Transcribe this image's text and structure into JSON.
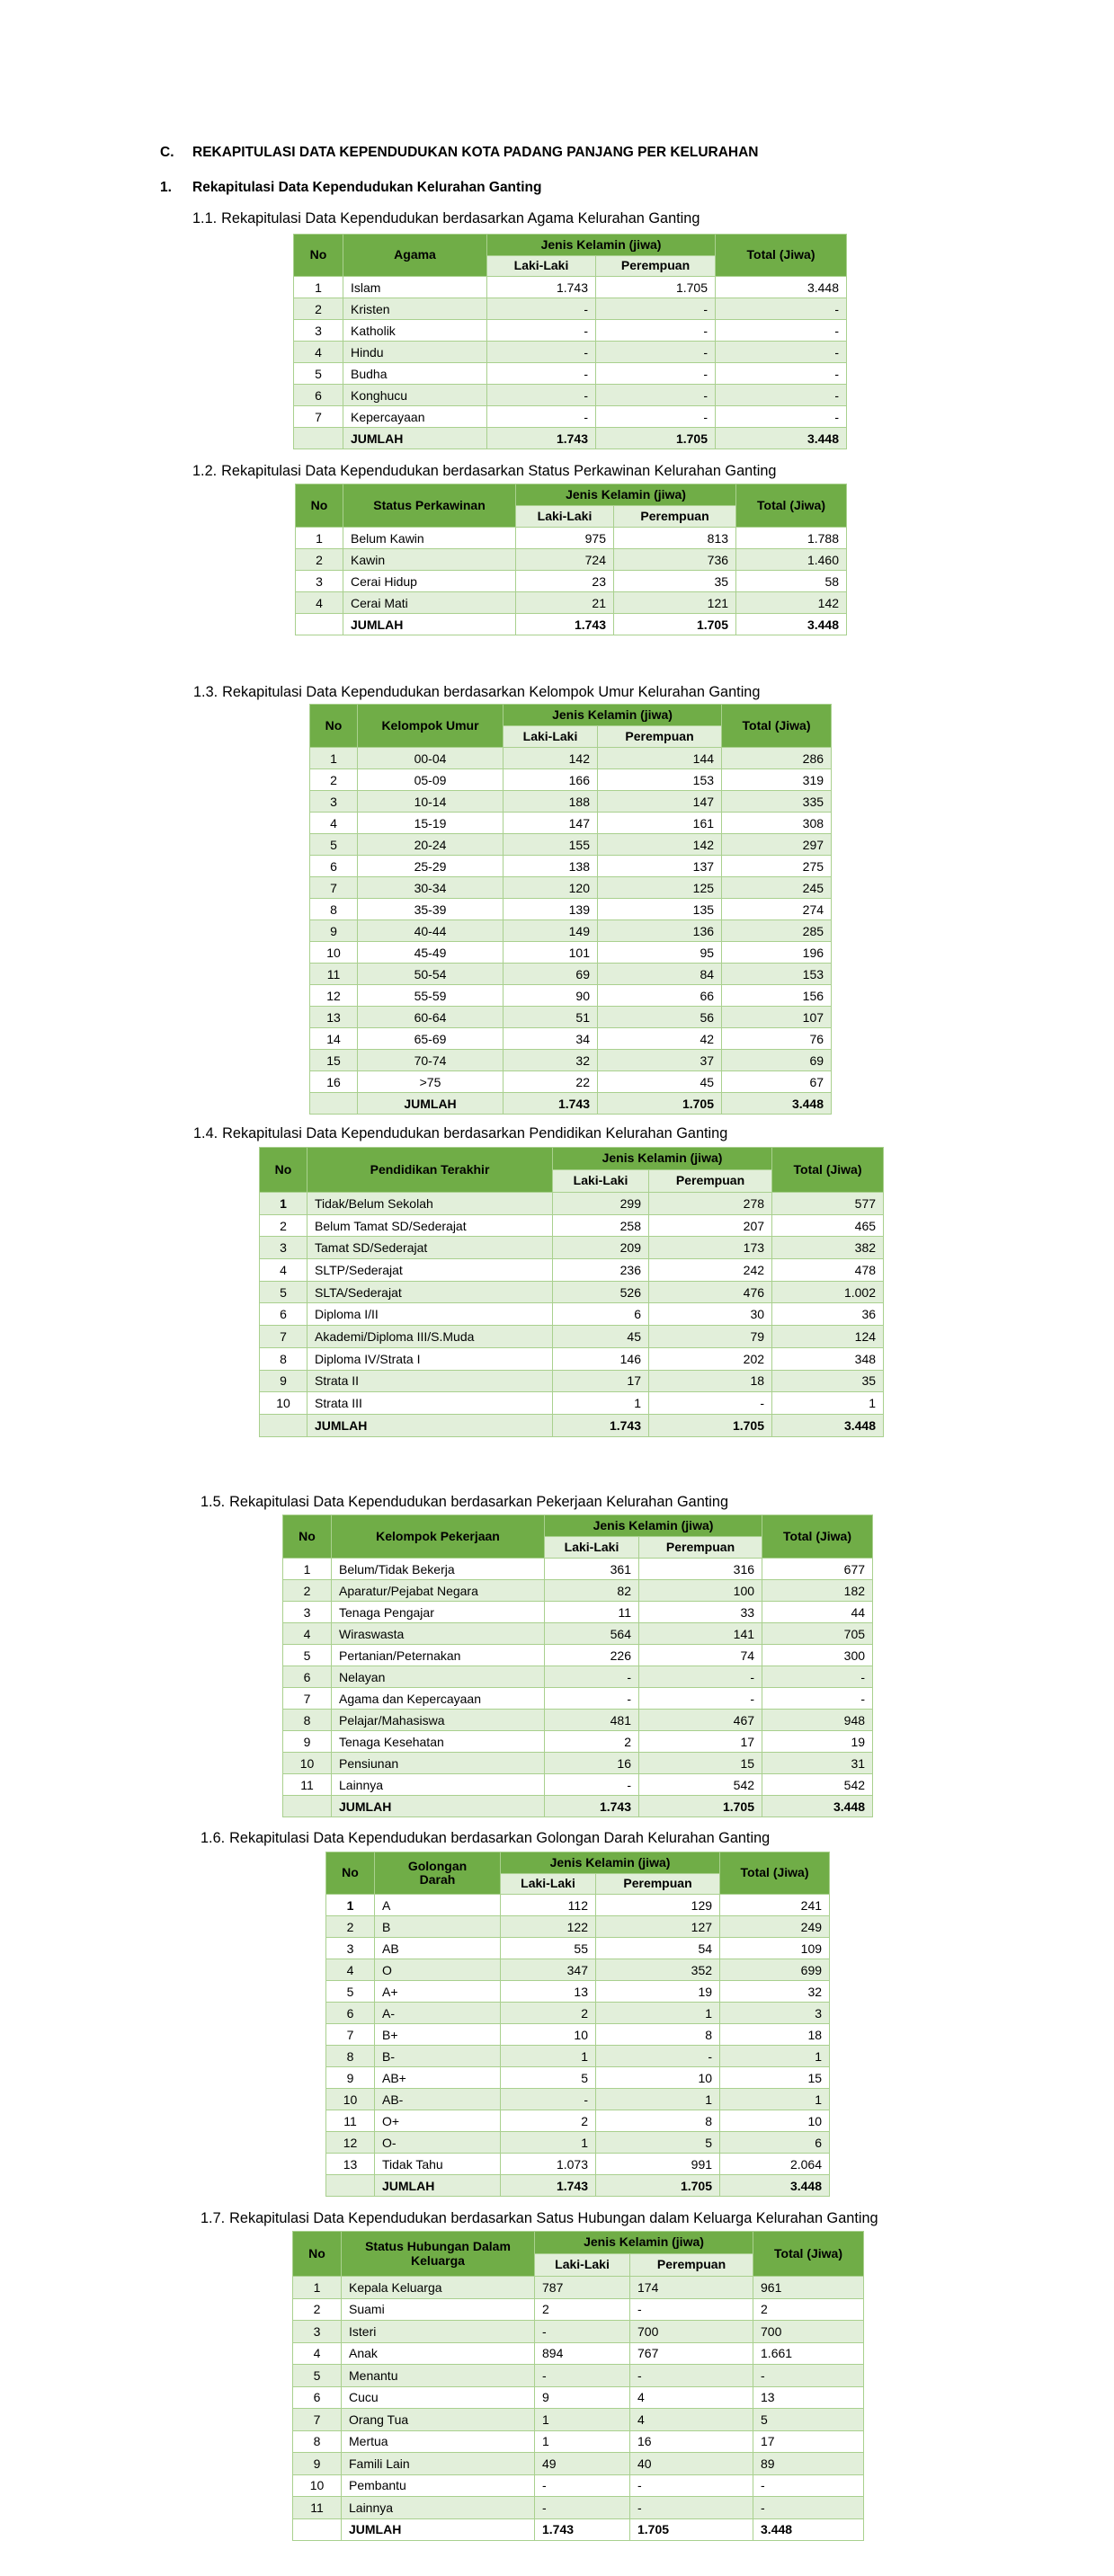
{
  "heading_c": {
    "label": "C.",
    "text": "REKAPITULASI DATA KEPENDUDUKAN KOTA PADANG PANJANG PER KELURAHAN"
  },
  "heading_1": {
    "label": "1.",
    "text": "Rekapitulasi Data Kependudukan Kelurahan Ganting"
  },
  "colors": {
    "header_dark": "#70AD47",
    "header_light": "#E2EFDA",
    "border": "#A9D08E"
  },
  "tables": [
    {
      "number": "1.1.",
      "caption": "Rekapitulasi Data Kependudukan berdasarkan Agama Kelurahan Ganting",
      "headers": {
        "no": "No",
        "category": "Agama",
        "gender_group": "Jenis Kelamin (jiwa)",
        "male": "Laki-Laki",
        "female": "Perempuan",
        "total": "Total (Jiwa)"
      },
      "rows": [
        [
          "1",
          "Islam",
          "1.743",
          "1.705",
          "3.448"
        ],
        [
          "2",
          "Kristen",
          "-",
          "-",
          "-"
        ],
        [
          "3",
          "Katholik",
          "-",
          "-",
          "-"
        ],
        [
          "4",
          "Hindu",
          "-",
          "-",
          "-"
        ],
        [
          "5",
          "Budha",
          "-",
          "-",
          "-"
        ],
        [
          "6",
          "Konghucu",
          "-",
          "-",
          "-"
        ],
        [
          "7",
          "Kepercayaan",
          "-",
          "-",
          "-"
        ]
      ],
      "total_row": [
        "",
        "JUMLAH",
        "1.743",
        "1.705",
        "3.448"
      ]
    },
    {
      "number": "1.2.",
      "caption": "Rekapitulasi Data Kependudukan berdasarkan Status Perkawinan Kelurahan Ganting",
      "headers": {
        "no": "No",
        "category": "Status Perkawinan",
        "gender_group": "Jenis Kelamin (jiwa)",
        "male": "Laki-Laki",
        "female": "Perempuan",
        "total": "Total (Jiwa)"
      },
      "rows": [
        [
          "1",
          "Belum Kawin",
          "975",
          "813",
          "1.788"
        ],
        [
          "2",
          "Kawin",
          "724",
          "736",
          "1.460"
        ],
        [
          "3",
          "Cerai Hidup",
          "23",
          "35",
          "58"
        ],
        [
          "4",
          "Cerai Mati",
          "21",
          "121",
          "142"
        ]
      ],
      "total_row": [
        "",
        "JUMLAH",
        "1.743",
        "1.705",
        "3.448"
      ]
    },
    {
      "number": "1.3.",
      "caption": "Rekapitulasi Data Kependudukan berdasarkan Kelompok Umur Kelurahan Ganting",
      "headers": {
        "no": "No",
        "category": "Kelompok Umur",
        "gender_group": "Jenis Kelamin (jiwa)",
        "male": "Laki-Laki",
        "female": "Perempuan",
        "total": "Total (Jiwa)"
      },
      "rows": [
        [
          "1",
          "00-04",
          "142",
          "144",
          "286"
        ],
        [
          "2",
          "05-09",
          "166",
          "153",
          "319"
        ],
        [
          "3",
          "10-14",
          "188",
          "147",
          "335"
        ],
        [
          "4",
          "15-19",
          "147",
          "161",
          "308"
        ],
        [
          "5",
          "20-24",
          "155",
          "142",
          "297"
        ],
        [
          "6",
          "25-29",
          "138",
          "137",
          "275"
        ],
        [
          "7",
          "30-34",
          "120",
          "125",
          "245"
        ],
        [
          "8",
          "35-39",
          "139",
          "135",
          "274"
        ],
        [
          "9",
          "40-44",
          "149",
          "136",
          "285"
        ],
        [
          "10",
          "45-49",
          "101",
          "95",
          "196"
        ],
        [
          "11",
          "50-54",
          "69",
          "84",
          "153"
        ],
        [
          "12",
          "55-59",
          "90",
          "66",
          "156"
        ],
        [
          "13",
          "60-64",
          "51",
          "56",
          "107"
        ],
        [
          "14",
          "65-69",
          "34",
          "42",
          "76"
        ],
        [
          "15",
          "70-74",
          "32",
          "37",
          "69"
        ],
        [
          "16",
          ">75",
          "22",
          "45",
          "67"
        ]
      ],
      "total_row": [
        "",
        "JUMLAH",
        "1.743",
        "1.705",
        "3.448"
      ]
    },
    {
      "number": "1.4.",
      "caption": "Rekapitulasi Data Kependudukan berdasarkan Pendidikan Kelurahan Ganting",
      "headers": {
        "no": "No",
        "category": "Pendidikan Terakhir",
        "gender_group": "Jenis Kelamin (jiwa)",
        "male": "Laki-Laki",
        "female": "Perempuan",
        "total": "Total (Jiwa)"
      },
      "rows": [
        [
          "1",
          "Tidak/Belum Sekolah",
          "299",
          "278",
          "577"
        ],
        [
          "2",
          "Belum Tamat SD/Sederajat",
          "258",
          "207",
          "465"
        ],
        [
          "3",
          "Tamat SD/Sederajat",
          "209",
          "173",
          "382"
        ],
        [
          "4",
          "SLTP/Sederajat",
          "236",
          "242",
          "478"
        ],
        [
          "5",
          "SLTA/Sederajat",
          "526",
          "476",
          "1.002"
        ],
        [
          "6",
          "Diploma I/II",
          "6",
          "30",
          "36"
        ],
        [
          "7",
          "Akademi/Diploma III/S.Muda",
          "45",
          "79",
          "124"
        ],
        [
          "8",
          "Diploma IV/Strata I",
          "146",
          "202",
          "348"
        ],
        [
          "9",
          "Strata II",
          "17",
          "18",
          "35"
        ],
        [
          "10",
          "Strata III",
          "1",
          "-",
          "1"
        ]
      ],
      "total_row": [
        "",
        "JUMLAH",
        "1.743",
        "1.705",
        "3.448"
      ]
    },
    {
      "number": "1.5.",
      "caption": "Rekapitulasi Data Kependudukan berdasarkan Pekerjaan Kelurahan Ganting",
      "headers": {
        "no": "No",
        "category": "Kelompok Pekerjaan",
        "gender_group": "Jenis Kelamin (jiwa)",
        "male": "Laki-Laki",
        "female": "Perempuan",
        "total": "Total (Jiwa)"
      },
      "rows": [
        [
          "1",
          "Belum/Tidak Bekerja",
          "361",
          "316",
          "677"
        ],
        [
          "2",
          "Aparatur/Pejabat Negara",
          "82",
          "100",
          "182"
        ],
        [
          "3",
          "Tenaga Pengajar",
          "11",
          "33",
          "44"
        ],
        [
          "4",
          "Wiraswasta",
          "564",
          "141",
          "705"
        ],
        [
          "5",
          "Pertanian/Peternakan",
          "226",
          "74",
          "300"
        ],
        [
          "6",
          "Nelayan",
          "-",
          "-",
          "-"
        ],
        [
          "7",
          "Agama dan Kepercayaan",
          "-",
          "-",
          "-"
        ],
        [
          "8",
          "Pelajar/Mahasiswa",
          "481",
          "467",
          "948"
        ],
        [
          "9",
          "Tenaga Kesehatan",
          "2",
          "17",
          "19"
        ],
        [
          "10",
          "Pensiunan",
          "16",
          "15",
          "31"
        ],
        [
          "11",
          "Lainnya",
          "-",
          "542",
          "542"
        ]
      ],
      "total_row": [
        "",
        "JUMLAH",
        "1.743",
        "1.705",
        "3.448"
      ]
    },
    {
      "number": "1.6.",
      "caption": "Rekapitulasi Data Kependudukan berdasarkan Golongan Darah Kelurahan Ganting",
      "headers": {
        "no": "No",
        "category": "Golongan Darah",
        "gender_group": "Jenis Kelamin (jiwa)",
        "male": "Laki-Laki",
        "female": "Perempuan",
        "total": "Total (Jiwa)"
      },
      "rows": [
        [
          "1",
          "A",
          "112",
          "129",
          "241"
        ],
        [
          "2",
          "B",
          "122",
          "127",
          "249"
        ],
        [
          "3",
          "AB",
          "55",
          "54",
          "109"
        ],
        [
          "4",
          "O",
          "347",
          "352",
          "699"
        ],
        [
          "5",
          "A+",
          "13",
          "19",
          "32"
        ],
        [
          "6",
          "A-",
          "2",
          "1",
          "3"
        ],
        [
          "7",
          "B+",
          "10",
          "8",
          "18"
        ],
        [
          "8",
          "B-",
          "1",
          "-",
          "1"
        ],
        [
          "9",
          "AB+",
          "5",
          "10",
          "15"
        ],
        [
          "10",
          "AB-",
          "-",
          "1",
          "1"
        ],
        [
          "11",
          "O+",
          "2",
          "8",
          "10"
        ],
        [
          "12",
          "O-",
          "1",
          "5",
          "6"
        ],
        [
          "13",
          "Tidak Tahu",
          "1.073",
          "991",
          "2.064"
        ]
      ],
      "total_row": [
        "",
        "JUMLAH",
        "1.743",
        "1.705",
        "3.448"
      ]
    },
    {
      "number": "1.7.",
      "caption": "Rekapitulasi Data Kependudukan berdasarkan Satus Hubungan dalam Keluarga Kelurahan Ganting",
      "headers": {
        "no": "No",
        "category": "Status Hubungan Dalam Keluarga",
        "gender_group": "Jenis Kelamin (jiwa)",
        "male": "Laki-Laki",
        "female": "Perempuan",
        "total": "Total (Jiwa)"
      },
      "rows": [
        [
          "1",
          "Kepala Keluarga",
          "787",
          "174",
          "961"
        ],
        [
          "2",
          "Suami",
          "2",
          "-",
          "2"
        ],
        [
          "3",
          "Isteri",
          "-",
          "700",
          "700"
        ],
        [
          "4",
          "Anak",
          "894",
          "767",
          "1.661"
        ],
        [
          "5",
          "Menantu",
          "-",
          "-",
          "-"
        ],
        [
          "6",
          "Cucu",
          "9",
          "4",
          "13"
        ],
        [
          "7",
          "Orang Tua",
          "1",
          "4",
          "5"
        ],
        [
          "8",
          "Mertua",
          "1",
          "16",
          "17"
        ],
        [
          "9",
          "Famili Lain",
          "49",
          "40",
          "89"
        ],
        [
          "10",
          "Pembantu",
          "-",
          "-",
          "-"
        ],
        [
          "11",
          "Lainnya",
          "-",
          "-",
          "-"
        ]
      ],
      "total_row": [
        "",
        "JUMLAH",
        "1.743",
        "1.705",
        "3.448"
      ]
    }
  ]
}
